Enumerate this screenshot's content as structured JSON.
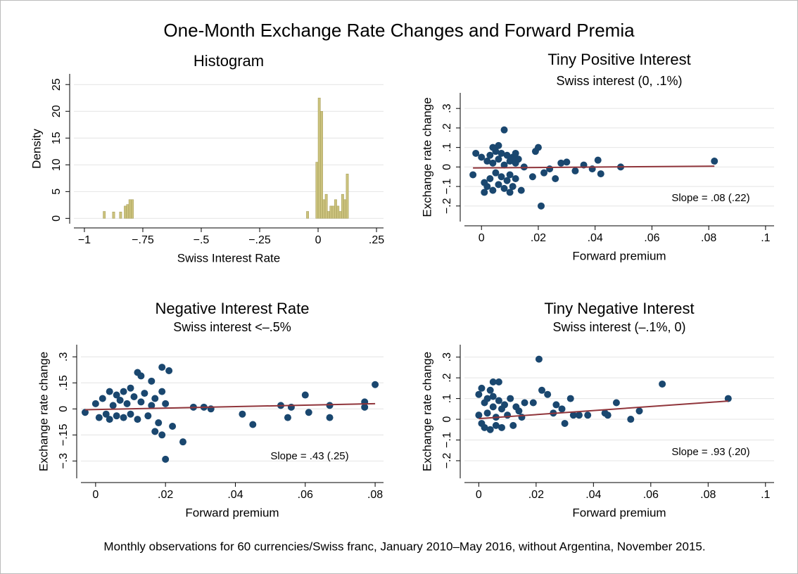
{
  "title": "One-Month Exchange Rate Changes and Forward Premia",
  "note": "Monthly observations for 60 currencies/Swiss franc, January 2010–May 2016, without Argentina, November 2015.",
  "chart_data": [
    {
      "type": "histogram",
      "title": "Histogram",
      "x_label": "Swiss Interest Rate",
      "y_label": "Density",
      "color": "#cbc27d",
      "grid": true,
      "bins": [
        -0.93,
        -0.92,
        -0.91,
        -0.9,
        -0.89,
        -0.88,
        -0.87,
        -0.86,
        -0.85,
        -0.84,
        -0.83,
        -0.82,
        -0.81,
        -0.8,
        -0.79,
        -0.78,
        -0.77,
        -0.76,
        -0.75,
        -0.74,
        -0.73,
        -0.72,
        -0.71,
        -0.7,
        -0.69,
        -0.68,
        -0.67,
        -0.66,
        -0.65,
        -0.64,
        -0.63,
        -0.62,
        -0.61,
        -0.6,
        -0.59,
        -0.58,
        -0.57,
        -0.56,
        -0.55,
        -0.54,
        -0.53,
        -0.52,
        -0.51,
        -0.5,
        -0.49,
        -0.48,
        -0.47,
        -0.46,
        -0.45,
        -0.44,
        -0.43,
        -0.42,
        -0.41,
        -0.4,
        -0.39,
        -0.38,
        -0.37,
        -0.36,
        -0.35,
        -0.34,
        -0.33,
        -0.32,
        -0.31,
        -0.3,
        -0.29,
        -0.28,
        -0.27,
        -0.26,
        -0.25,
        -0.24,
        -0.23,
        -0.22,
        -0.21,
        -0.2,
        -0.19,
        -0.18,
        -0.17,
        -0.16,
        -0.15,
        -0.14,
        -0.13,
        -0.12,
        -0.11,
        -0.1,
        -0.09,
        -0.08,
        -0.07,
        -0.06,
        -0.05,
        -0.04,
        -0.03,
        -0.02,
        -0.01,
        0,
        0.01,
        0.02,
        0.03,
        0.04,
        0.05,
        0.06,
        0.07,
        0.08,
        0.09,
        0.1,
        0.11,
        0.12,
        0.13,
        0.14,
        0.15
      ],
      "counts": [
        0,
        1.3,
        0,
        0,
        0,
        1.2,
        0,
        0,
        1.2,
        0,
        2.3,
        2.6,
        3.5,
        3.5,
        0,
        0,
        0,
        0,
        0,
        0,
        0,
        0,
        0,
        0,
        0,
        0,
        0,
        0,
        0,
        0,
        0,
        0,
        0,
        0,
        0,
        0,
        0,
        0,
        0,
        0,
        0,
        0,
        0,
        0,
        0,
        0,
        0,
        0,
        0,
        0,
        0,
        0,
        0,
        0,
        0,
        0,
        0,
        0,
        0,
        0,
        0,
        0,
        0,
        0,
        0,
        0,
        0,
        0,
        0,
        0,
        0,
        0,
        0,
        0,
        0,
        0,
        0,
        0,
        0,
        0,
        0,
        0,
        0,
        0,
        0,
        0,
        0,
        0,
        1.3,
        0,
        0,
        0,
        10.5,
        22.5,
        20,
        3.5,
        4.5,
        1.3,
        2.3,
        2.3,
        3.5,
        2.3,
        1.3,
        4.5,
        3.5,
        8.3,
        0,
        0
      ],
      "xlim": [
        -1.045,
        0.28
      ],
      "ylim": [
        -1,
        27
      ],
      "xticks": [
        {
          "value": -1,
          "label": "−1"
        },
        {
          "value": -0.75,
          "label": "−.75"
        },
        {
          "value": -0.5,
          "label": "−.5"
        },
        {
          "value": -0.25,
          "label": "−.25"
        },
        0,
        {
          "value": 0.25,
          "label": ".25"
        }
      ],
      "yticks": [
        0,
        5,
        10,
        15,
        20,
        25
      ]
    },
    {
      "type": "scatter",
      "title": "Tiny Positive Interest",
      "subtitle": "Swiss interest (0, .1%)",
      "x_label": "Forward premium",
      "y_label": "Exchange rate change",
      "color": "#1a476f",
      "grid": true,
      "annotation": "Slope = .08 (.22)",
      "x": [
        0,
        0.001,
        0.002,
        0.002,
        0.003,
        0.003,
        0.004,
        0.004,
        0.005,
        0.005,
        0.006,
        0.006,
        0.007,
        0.007,
        0.008,
        0.008,
        0.009,
        0.009,
        0.01,
        0.01,
        0.011,
        0.011,
        0.012,
        0.012,
        0.013,
        0.008,
        0.021,
        0.02,
        0.019,
        0.026,
        0.028,
        0.03,
        0.033,
        0.036,
        0.039,
        0.041,
        0.042,
        0.049,
        0.082,
        0.024,
        0.022,
        0.018,
        0.015,
        0.014,
        -0.003,
        -0.002,
        0.001,
        0.004,
        0.006,
        0.01,
        0.012
      ],
      "y": [
        0.05,
        -0.08,
        0.03,
        -0.1,
        0.06,
        -0.06,
        0.02,
        -0.12,
        0.08,
        -0.03,
        0.04,
        -0.09,
        0.07,
        -0.05,
        0.01,
        -0.11,
        0.06,
        -0.07,
        0.03,
        -0.04,
        0.05,
        -0.1,
        0.02,
        -0.06,
        0.04,
        0.19,
        -0.2,
        0.1,
        0.08,
        -0.06,
        0.02,
        0.025,
        -0.02,
        0.01,
        -0.01,
        0.035,
        -0.035,
        0,
        0.03,
        -0.01,
        -0.03,
        -0.05,
        0,
        -0.12,
        -0.04,
        0.07,
        -0.13,
        0.1,
        0.11,
        -0.13,
        0.07
      ],
      "fit": {
        "x": [
          -0.003,
          0.082
        ],
        "y": [
          -0.005,
          0.004
        ],
        "color": "#90353b"
      },
      "xlim": [
        -0.006,
        0.103
      ],
      "ylim": [
        -0.28,
        0.38
      ],
      "xticks": [
        0,
        {
          "value": 0.02,
          "label": ".02"
        },
        {
          "value": 0.04,
          "label": ".04"
        },
        {
          "value": 0.06,
          "label": ".06"
        },
        {
          "value": 0.08,
          "label": ".08"
        },
        {
          "value": 0.1,
          "label": ".1"
        }
      ],
      "yticks": [
        {
          "value": -0.2,
          "label": "−.2"
        },
        {
          "value": -0.1,
          "label": "−.1"
        },
        0,
        {
          "value": 0.1,
          "label": ".1"
        },
        {
          "value": 0.2,
          "label": ".2"
        },
        {
          "value": 0.3,
          "label": ".3"
        }
      ]
    },
    {
      "type": "scatter",
      "title": "Negative Interest Rate",
      "subtitle": "Swiss interest <–.5%",
      "x_label": "Forward premium",
      "y_label": "Exchange rate change",
      "color": "#1a476f",
      "grid": true,
      "annotation": "Slope = .43 (.25)",
      "x": [
        0,
        0.001,
        0.002,
        0.003,
        0.004,
        0.004,
        0.005,
        0.006,
        0.006,
        0.007,
        0.008,
        0.008,
        0.009,
        0.01,
        0.01,
        0.011,
        0.012,
        0.013,
        0.014,
        0.015,
        0.016,
        0.017,
        0.018,
        0.019,
        0.02,
        0.019,
        0.021,
        0.012,
        0.013,
        0.016,
        0.019,
        0.02,
        0.025,
        0.017,
        0.022,
        0.042,
        0.045,
        0.053,
        0.055,
        0.056,
        0.06,
        0.061,
        0.067,
        0.067,
        0.077,
        0.077,
        0.08,
        -0.003,
        0.028,
        0.031,
        0.033
      ],
      "y": [
        0.03,
        -0.05,
        0.06,
        -0.03,
        0.1,
        -0.06,
        0.02,
        0.08,
        -0.04,
        0.05,
        0.1,
        -0.05,
        0.03,
        0.12,
        -0.03,
        0.07,
        -0.06,
        0.04,
        0.09,
        -0.04,
        0.02,
        0.06,
        -0.08,
        0.1,
        0.03,
        0.24,
        0.22,
        0.21,
        0.19,
        0.16,
        -0.15,
        -0.29,
        -0.19,
        -0.13,
        -0.1,
        -0.03,
        -0.09,
        0.02,
        -0.05,
        0.01,
        0.08,
        -0.02,
        0.02,
        -0.05,
        0.04,
        0.01,
        0.14,
        -0.02,
        0.01,
        0.01,
        0
      ],
      "fit": {
        "x": [
          -0.003,
          0.08
        ],
        "y": [
          -0.005,
          0.03
        ],
        "color": "#90353b"
      },
      "xlim": [
        -0.0042,
        0.0824
      ],
      "ylim": [
        -0.4,
        0.37
      ],
      "xticks": [
        0,
        {
          "value": 0.02,
          "label": ".02"
        },
        {
          "value": 0.04,
          "label": ".04"
        },
        {
          "value": 0.06,
          "label": ".06"
        },
        {
          "value": 0.08,
          "label": ".08"
        }
      ],
      "yticks": [
        {
          "value": -0.3,
          "label": "−.3"
        },
        {
          "value": -0.15,
          "label": "−.15"
        },
        0,
        {
          "value": 0.15,
          "label": ".15"
        },
        {
          "value": 0.3,
          "label": ".3"
        }
      ]
    },
    {
      "type": "scatter",
      "title": "Tiny Negative Interest",
      "subtitle": "Swiss interest (–.1%, 0)",
      "x_label": "Forward premium",
      "y_label": "Exchange rate change",
      "color": "#1a476f",
      "grid": true,
      "annotation": "Slope = .93 (.20)",
      "x": [
        0,
        0,
        0.001,
        0.001,
        0.002,
        0.002,
        0.003,
        0.003,
        0.004,
        0.004,
        0.005,
        0.005,
        0.006,
        0.006,
        0.007,
        0.008,
        0.008,
        0.009,
        0.01,
        0.011,
        0.012,
        0.013,
        0.014,
        0.015,
        0.016,
        0.021,
        0.005,
        0.007,
        0.064,
        0.087,
        0.048,
        0.056,
        0.053,
        0.044,
        0.045,
        0.038,
        0.032,
        0.024,
        0.022,
        0.019,
        0.027,
        0.029,
        0.026,
        0.03,
        0.033,
        0.035
      ],
      "y": [
        0.02,
        0.12,
        -0.02,
        0.15,
        0.08,
        -0.04,
        0.1,
        0.03,
        0.14,
        -0.05,
        0.06,
        0.11,
        0.01,
        -0.03,
        0.09,
        0.05,
        -0.04,
        0.07,
        0.02,
        0.1,
        -0.03,
        0.06,
        0.04,
        0.01,
        0.08,
        0.29,
        0.18,
        0.18,
        0.17,
        0.1,
        0.08,
        0.04,
        0,
        0.03,
        0.02,
        0.02,
        0.1,
        0.12,
        0.14,
        0.08,
        0.07,
        0.05,
        0.03,
        -0.02,
        0.02,
        0.02
      ],
      "fit": {
        "x": [
          0,
          0.087
        ],
        "y": [
          0.003,
          0.088
        ],
        "color": "#90353b"
      },
      "xlim": [
        -0.005,
        0.103
      ],
      "ylim": [
        -0.285,
        0.36
      ],
      "xticks": [
        0,
        {
          "value": 0.02,
          "label": ".02"
        },
        {
          "value": 0.04,
          "label": ".04"
        },
        {
          "value": 0.06,
          "label": ".06"
        },
        {
          "value": 0.08,
          "label": ".08"
        },
        {
          "value": 0.1,
          "label": ".1"
        }
      ],
      "yticks": [
        {
          "value": -0.2,
          "label": "−.2"
        },
        {
          "value": -0.1,
          "label": "−.1"
        },
        0,
        {
          "value": 0.1,
          "label": ".1"
        },
        {
          "value": 0.2,
          "label": ".2"
        },
        {
          "value": 0.3,
          "label": ".3"
        }
      ]
    }
  ]
}
